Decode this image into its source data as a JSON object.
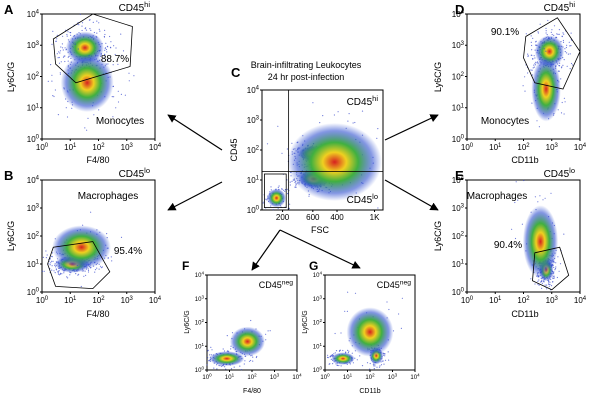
{
  "center": {
    "letter": "C",
    "title_line1": "Brain-infiltrating Leukocytes",
    "title_line2": "24 hr post-infection",
    "x_label": "FSC",
    "y_label": "CD45",
    "hi_label": {
      "base": "CD45",
      "sup": "hi"
    },
    "lo_label": {
      "base": "CD45",
      "sup": "lo"
    },
    "x_ticks": [
      "200",
      "600",
      "400",
      "1K"
    ],
    "y_ticks": [
      {
        "base": "10",
        "exp": "0"
      },
      {
        "base": "10",
        "exp": "1"
      },
      {
        "base": "10",
        "exp": "2"
      },
      {
        "base": "10",
        "exp": "3"
      },
      {
        "base": "10",
        "exp": "4"
      }
    ]
  },
  "panels": [
    {
      "letter": "A",
      "gate_label": {
        "base": "CD45",
        "sup": "hi"
      },
      "percent": "88.7%",
      "population": "Monocytes",
      "x_label": "F4/80",
      "y_label": "Ly6C/G",
      "x_ticks": [
        {
          "base": "10",
          "exp": "0"
        },
        {
          "base": "10",
          "exp": "1"
        },
        {
          "base": "10",
          "exp": "2"
        },
        {
          "base": "10",
          "exp": "3"
        },
        {
          "base": "10",
          "exp": "4"
        }
      ],
      "y_ticks": [
        {
          "base": "10",
          "exp": "0"
        },
        {
          "base": "10",
          "exp": "1"
        },
        {
          "base": "10",
          "exp": "2"
        },
        {
          "base": "10",
          "exp": "3"
        },
        {
          "base": "10",
          "exp": "4"
        }
      ]
    },
    {
      "letter": "B",
      "gate_label": {
        "base": "CD45",
        "sup": "lo"
      },
      "percent": "95.4%",
      "population": "Macrophages",
      "x_label": "F4/80",
      "y_label": "Ly6C/G",
      "x_ticks": [
        {
          "base": "10",
          "exp": "0"
        },
        {
          "base": "10",
          "exp": "1"
        },
        {
          "base": "10",
          "exp": "2"
        },
        {
          "base": "10",
          "exp": "3"
        },
        {
          "base": "10",
          "exp": "4"
        }
      ],
      "y_ticks": [
        {
          "base": "10",
          "exp": "0"
        },
        {
          "base": "10",
          "exp": "1"
        },
        {
          "base": "10",
          "exp": "2"
        },
        {
          "base": "10",
          "exp": "3"
        },
        {
          "base": "10",
          "exp": "4"
        }
      ]
    },
    {
      "letter": "D",
      "gate_label": {
        "base": "CD45",
        "sup": "hi"
      },
      "percent": "90.1%",
      "population": "Monocytes",
      "x_label": "CD11b",
      "y_label": "Ly6C/G",
      "x_ticks": [
        {
          "base": "10",
          "exp": "0"
        },
        {
          "base": "10",
          "exp": "1"
        },
        {
          "base": "10",
          "exp": "2"
        },
        {
          "base": "10",
          "exp": "3"
        },
        {
          "base": "10",
          "exp": "4"
        }
      ],
      "y_ticks": [
        {
          "base": "10",
          "exp": "0"
        },
        {
          "base": "10",
          "exp": "1"
        },
        {
          "base": "10",
          "exp": "2"
        },
        {
          "base": "10",
          "exp": "3"
        },
        {
          "base": "10",
          "exp": "4"
        }
      ]
    },
    {
      "letter": "E",
      "gate_label": {
        "base": "CD45",
        "sup": "lo"
      },
      "percent": "90.4%",
      "population": "Macrophages",
      "x_label": "CD11b",
      "y_label": "Ly6C/G",
      "x_ticks": [
        {
          "base": "10",
          "exp": "0"
        },
        {
          "base": "10",
          "exp": "1"
        },
        {
          "base": "10",
          "exp": "2"
        },
        {
          "base": "10",
          "exp": "3"
        },
        {
          "base": "10",
          "exp": "4"
        }
      ],
      "y_ticks": [
        {
          "base": "10",
          "exp": "0"
        },
        {
          "base": "10",
          "exp": "1"
        },
        {
          "base": "10",
          "exp": "2"
        },
        {
          "base": "10",
          "exp": "3"
        },
        {
          "base": "10",
          "exp": "4"
        }
      ]
    },
    {
      "letter": "F",
      "gate_label": {
        "base": "CD45",
        "sup": "neg"
      },
      "x_label": "F4/80",
      "y_label": "Ly6C/G",
      "x_ticks": [
        {
          "base": "10",
          "exp": "0"
        },
        {
          "base": "10",
          "exp": "1"
        },
        {
          "base": "10",
          "exp": "2"
        },
        {
          "base": "10",
          "exp": "3"
        },
        {
          "base": "10",
          "exp": "4"
        }
      ],
      "y_ticks": [
        {
          "base": "10",
          "exp": "0"
        },
        {
          "base": "10",
          "exp": "1"
        },
        {
          "base": "10",
          "exp": "2"
        },
        {
          "base": "10",
          "exp": "3"
        },
        {
          "base": "10",
          "exp": "4"
        }
      ]
    },
    {
      "letter": "G",
      "gate_label": {
        "base": "CD45",
        "sup": "neg"
      },
      "x_label": "CD11b",
      "y_label": "Ly6C/G",
      "x_ticks": [
        {
          "base": "10",
          "exp": "0"
        },
        {
          "base": "10",
          "exp": "1"
        },
        {
          "base": "10",
          "exp": "2"
        },
        {
          "base": "10",
          "exp": "3"
        },
        {
          "base": "10",
          "exp": "4"
        }
      ],
      "y_ticks": [
        {
          "base": "10",
          "exp": "0"
        },
        {
          "base": "10",
          "exp": "1"
        },
        {
          "base": "10",
          "exp": "2"
        },
        {
          "base": "10",
          "exp": "3"
        },
        {
          "base": "10",
          "exp": "4"
        }
      ]
    }
  ]
}
